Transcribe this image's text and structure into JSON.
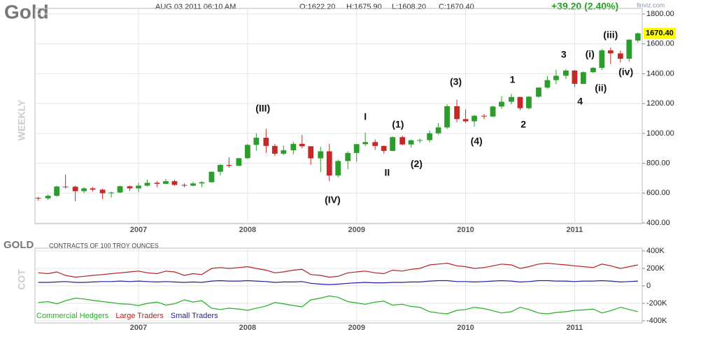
{
  "header": {
    "date": "AUG 03 2011 06:10 AM",
    "open": "O:1622.20",
    "high": "H:1675.90",
    "low": "L:1608.20",
    "close": "C:1670.40",
    "change": "+39.20 (2.40%)",
    "source": "finviz.com"
  },
  "chart_data": [
    {
      "type": "candlestick",
      "title": "Gold",
      "y_label": "WEEKLY",
      "up_color": "#2a9d2a",
      "down_color": "#c62828",
      "last_label": "1670.40",
      "x": [
        2006.08,
        2006.17,
        2006.25,
        2006.33,
        2006.42,
        2006.5,
        2006.58,
        2006.67,
        2006.75,
        2006.83,
        2006.92,
        2007.0,
        2007.08,
        2007.17,
        2007.25,
        2007.33,
        2007.42,
        2007.5,
        2007.58,
        2007.67,
        2007.75,
        2007.83,
        2007.92,
        2008.0,
        2008.08,
        2008.17,
        2008.25,
        2008.33,
        2008.42,
        2008.5,
        2008.58,
        2008.67,
        2008.75,
        2008.83,
        2008.92,
        2009.0,
        2009.08,
        2009.17,
        2009.25,
        2009.33,
        2009.42,
        2009.5,
        2009.58,
        2009.67,
        2009.75,
        2009.83,
        2009.92,
        2010.0,
        2010.08,
        2010.17,
        2010.25,
        2010.33,
        2010.42,
        2010.5,
        2010.58,
        2010.67,
        2010.75,
        2010.83,
        2010.92,
        2011.0,
        2011.08,
        2011.17,
        2011.25,
        2011.33,
        2011.42,
        2011.5,
        2011.58
      ],
      "open": [
        568,
        565,
        582,
        644,
        643,
        613,
        632,
        623,
        599,
        604,
        646,
        632,
        650,
        669,
        662,
        680,
        655,
        650,
        665,
        673,
        743,
        789,
        783,
        834,
        923,
        971,
        916,
        864,
        887,
        930,
        914,
        833,
        880,
        718,
        815,
        869,
        928,
        942,
        916,
        883,
        975,
        926,
        954,
        955,
        1001,
        1040,
        1182,
        1096,
        1081,
        1118,
        1113,
        1180,
        1212,
        1244,
        1169,
        1246,
        1307,
        1357,
        1386,
        1421,
        1332,
        1410,
        1439,
        1556,
        1536,
        1500,
        1622.2
      ],
      "high": [
        575,
        590,
        650,
        725,
        650,
        640,
        640,
        630,
        610,
        650,
        650,
        670,
        690,
        680,
        695,
        690,
        665,
        675,
        680,
        745,
        795,
        840,
        835,
        930,
        1000,
        1030,
        930,
        920,
        945,
        990,
        915,
        910,
        930,
        825,
        880,
        930,
        1005,
        960,
        920,
        980,
        985,
        960,
        965,
        1020,
        1070,
        1195,
        1226,
        1160,
        1125,
        1130,
        1185,
        1250,
        1265,
        1245,
        1250,
        1310,
        1385,
        1425,
        1430,
        1425,
        1415,
        1445,
        1565,
        1575,
        1555,
        1630,
        1675.9
      ],
      "low": [
        550,
        555,
        575,
        630,
        545,
        600,
        610,
        560,
        570,
        600,
        615,
        605,
        645,
        640,
        660,
        650,
        640,
        645,
        640,
        670,
        720,
        770,
        780,
        830,
        885,
        870,
        850,
        855,
        860,
        900,
        790,
        740,
        681,
        705,
        760,
        810,
        915,
        890,
        865,
        880,
        920,
        905,
        935,
        940,
        990,
        1030,
        1075,
        1070,
        1045,
        1095,
        1110,
        1165,
        1195,
        1155,
        1160,
        1240,
        1300,
        1330,
        1365,
        1310,
        1330,
        1405,
        1425,
        1465,
        1475,
        1480,
        1608.2
      ],
      "close": [
        565,
        582,
        644,
        643,
        613,
        632,
        623,
        599,
        604,
        646,
        632,
        650,
        669,
        662,
        680,
        655,
        650,
        665,
        673,
        743,
        789,
        783,
        834,
        923,
        971,
        916,
        864,
        887,
        930,
        914,
        833,
        880,
        718,
        815,
        869,
        928,
        942,
        916,
        883,
        975,
        926,
        954,
        955,
        1001,
        1040,
        1182,
        1096,
        1081,
        1118,
        1113,
        1180,
        1212,
        1244,
        1169,
        1246,
        1307,
        1357,
        1386,
        1421,
        1332,
        1410,
        1439,
        1556,
        1536,
        1500,
        1628,
        1670.4
      ],
      "xlim": [
        2006.05,
        2011.62
      ],
      "xticks": [
        2007,
        2008,
        2009,
        2010,
        2011
      ],
      "ylim": [
        400,
        1800
      ],
      "yticks": [
        {
          "value": 1800,
          "label": "1800.00"
        },
        {
          "value": 1600,
          "label": "1600.00"
        },
        {
          "value": 1400,
          "label": "1400.00"
        },
        {
          "value": 1200,
          "label": "1200.00"
        },
        {
          "value": 1000,
          "label": "1000.00"
        },
        {
          "value": 800,
          "label": "800.00"
        },
        {
          "value": 600,
          "label": "600.00"
        },
        {
          "value": 400,
          "label": "400.00"
        }
      ],
      "grid": true,
      "annotations": [
        {
          "text": "(III)",
          "x": 2008.14,
          "y": 1163
        },
        {
          "text": "(IV)",
          "x": 2008.78,
          "y": 550
        },
        {
          "text": "I",
          "x": 2009.08,
          "y": 1107
        },
        {
          "text": "II",
          "x": 2009.28,
          "y": 733
        },
        {
          "text": "(1)",
          "x": 2009.38,
          "y": 1056
        },
        {
          "text": "(2)",
          "x": 2009.55,
          "y": 793
        },
        {
          "text": "(3)",
          "x": 2009.91,
          "y": 1341
        },
        {
          "text": "(4)",
          "x": 2010.1,
          "y": 943
        },
        {
          "text": "1",
          "x": 2010.43,
          "y": 1355
        },
        {
          "text": "2",
          "x": 2010.53,
          "y": 1056
        },
        {
          "text": "3",
          "x": 2010.9,
          "y": 1524
        },
        {
          "text": "4",
          "x": 2011.05,
          "y": 1210
        },
        {
          "text": "(i)",
          "x": 2011.14,
          "y": 1528
        },
        {
          "text": "(ii)",
          "x": 2011.24,
          "y": 1299
        },
        {
          "text": "(iii)",
          "x": 2011.33,
          "y": 1655
        },
        {
          "text": "(iv)",
          "x": 2011.47,
          "y": 1407
        }
      ]
    },
    {
      "type": "line",
      "title": "GOLD",
      "subtitle": "CONTRACTS OF 100 TROY OUNCES",
      "y_label": "COT",
      "x": [
        2006.08,
        2006.17,
        2006.25,
        2006.33,
        2006.42,
        2006.5,
        2006.58,
        2006.67,
        2006.75,
        2006.83,
        2006.92,
        2007.0,
        2007.08,
        2007.17,
        2007.25,
        2007.33,
        2007.42,
        2007.5,
        2007.58,
        2007.67,
        2007.75,
        2007.83,
        2007.92,
        2008.0,
        2008.08,
        2008.17,
        2008.25,
        2008.33,
        2008.42,
        2008.5,
        2008.58,
        2008.67,
        2008.75,
        2008.83,
        2008.92,
        2009.0,
        2009.08,
        2009.17,
        2009.25,
        2009.33,
        2009.42,
        2009.5,
        2009.58,
        2009.67,
        2009.75,
        2009.83,
        2009.92,
        2010.0,
        2010.08,
        2010.17,
        2010.25,
        2010.33,
        2010.42,
        2010.5,
        2010.58,
        2010.67,
        2010.75,
        2010.83,
        2010.92,
        2011.0,
        2011.08,
        2011.17,
        2011.25,
        2011.33,
        2011.42,
        2011.5,
        2011.58
      ],
      "series": [
        {
          "name": "Commercial Hedgers",
          "color": "#22b022",
          "values": [
            -190000,
            -180000,
            -205000,
            -170000,
            -140000,
            -150000,
            -165000,
            -180000,
            -190000,
            -205000,
            -210000,
            -225000,
            -200000,
            -185000,
            -220000,
            -205000,
            -160000,
            -185000,
            -170000,
            -255000,
            -270000,
            -255000,
            -265000,
            -280000,
            -255000,
            -230000,
            -190000,
            -205000,
            -225000,
            -240000,
            -160000,
            -140000,
            -115000,
            -130000,
            -180000,
            -195000,
            -210000,
            -185000,
            -175000,
            -220000,
            -210000,
            -235000,
            -245000,
            -295000,
            -310000,
            -320000,
            -280000,
            -270000,
            -245000,
            -260000,
            -285000,
            -310000,
            -295000,
            -245000,
            -270000,
            -310000,
            -320000,
            -305000,
            -295000,
            -280000,
            -275000,
            -265000,
            -310000,
            -285000,
            -245000,
            -270000,
            -295000
          ]
        },
        {
          "name": "Large Traders",
          "color": "#b22222",
          "values": [
            150000,
            140000,
            160000,
            120000,
            100000,
            110000,
            120000,
            130000,
            140000,
            150000,
            160000,
            170000,
            150000,
            140000,
            170000,
            160000,
            120000,
            140000,
            130000,
            200000,
            210000,
            200000,
            210000,
            220000,
            200000,
            180000,
            150000,
            160000,
            180000,
            190000,
            130000,
            120000,
            100000,
            110000,
            150000,
            160000,
            170000,
            150000,
            140000,
            180000,
            170000,
            190000,
            200000,
            240000,
            250000,
            260000,
            230000,
            220000,
            200000,
            210000,
            230000,
            250000,
            240000,
            200000,
            220000,
            250000,
            260000,
            250000,
            240000,
            230000,
            220000,
            210000,
            250000,
            230000,
            200000,
            220000,
            240000
          ]
        },
        {
          "name": "Small Traders",
          "color": "#1f1fa0",
          "values": [
            40000,
            40000,
            45000,
            50000,
            40000,
            40000,
            45000,
            50000,
            50000,
            55000,
            50000,
            55000,
            50000,
            45000,
            50000,
            45000,
            40000,
            45000,
            40000,
            55000,
            60000,
            55000,
            55000,
            60000,
            55000,
            50000,
            40000,
            45000,
            45000,
            50000,
            30000,
            20000,
            15000,
            20000,
            30000,
            35000,
            40000,
            35000,
            35000,
            40000,
            40000,
            45000,
            45000,
            55000,
            60000,
            60000,
            50000,
            50000,
            45000,
            50000,
            55000,
            60000,
            55000,
            45000,
            50000,
            60000,
            60000,
            55000,
            55000,
            50000,
            55000,
            55000,
            60000,
            55000,
            45000,
            50000,
            55000
          ]
        }
      ],
      "xlim": [
        2006.05,
        2011.62
      ],
      "xticks": [
        2007,
        2008,
        2009,
        2010,
        2011
      ],
      "ylim": [
        -400000,
        400000
      ],
      "yticks": [
        {
          "value": 400000,
          "label": "400K"
        },
        {
          "value": 200000,
          "label": "200K"
        },
        0,
        {
          "value": -200000,
          "label": "-200K"
        },
        {
          "value": -400000,
          "label": "-400K"
        }
      ],
      "grid": true
    }
  ]
}
